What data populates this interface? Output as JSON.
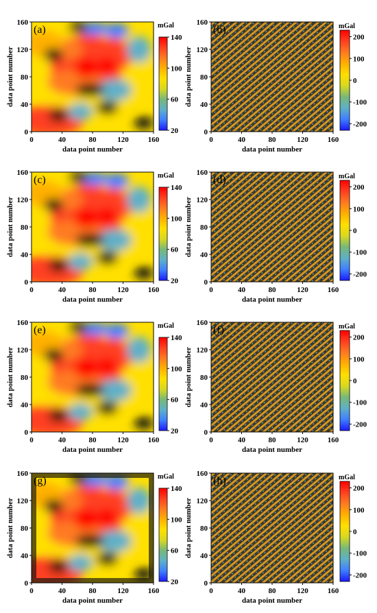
{
  "figure": {
    "x_axis_label": "data point number",
    "y_axis_label": "data point number"
  },
  "colors": {
    "colormap": [
      "#1a1aff",
      "#3f7fff",
      "#5fb0c8",
      "#78b878",
      "#d8d820",
      "#ffe000",
      "#ffb000",
      "#ff7a20",
      "#ff4020",
      "#ff0000"
    ],
    "low_region": "#1a1a10",
    "noise_dark": "#3a3a2a",
    "noise_orange": "#d89620",
    "noise_blue": "#6aa0c0"
  },
  "chart_data": [
    {
      "type": "heatmap",
      "panel_label": "(a)",
      "xlabel": "data point number",
      "ylabel": "data point number",
      "xlim": [
        0,
        160
      ],
      "ylim": [
        0,
        160
      ],
      "xticks": [
        "0",
        "40",
        "80",
        "120",
        "160"
      ],
      "yticks": [
        "0",
        "40",
        "80",
        "120",
        "160"
      ],
      "colorbar": {
        "unit": "mGal",
        "range": [
          20,
          140
        ],
        "ticks": [
          "20",
          "60",
          "100",
          "140"
        ]
      }
    },
    {
      "type": "heatmap",
      "panel_label": "(b)",
      "xlabel": "data point number",
      "ylabel": "data point number",
      "xlim": [
        0,
        160
      ],
      "ylim": [
        0,
        160
      ],
      "xticks": [
        "0",
        "40",
        "80",
        "120",
        "160"
      ],
      "yticks": [
        "0",
        "40",
        "80",
        "120",
        "160"
      ],
      "colorbar": {
        "unit": "mGal",
        "range": [
          -230,
          230
        ],
        "ticks": [
          "-200",
          "-100",
          "0",
          "100",
          "200"
        ]
      }
    },
    {
      "type": "heatmap",
      "panel_label": "(c)",
      "xlabel": "data point number",
      "ylabel": "data point number",
      "xlim": [
        0,
        160
      ],
      "ylim": [
        0,
        160
      ],
      "xticks": [
        "0",
        "40",
        "80",
        "120",
        "160"
      ],
      "yticks": [
        "0",
        "40",
        "80",
        "120",
        "160"
      ],
      "colorbar": {
        "unit": "mGal",
        "range": [
          20,
          140
        ],
        "ticks": [
          "20",
          "60",
          "100",
          "140"
        ]
      }
    },
    {
      "type": "heatmap",
      "panel_label": "(d)",
      "xlabel": "data point number",
      "ylabel": "data point number",
      "xlim": [
        0,
        160
      ],
      "ylim": [
        0,
        160
      ],
      "xticks": [
        "0",
        "40",
        "80",
        "120",
        "160"
      ],
      "yticks": [
        "0",
        "40",
        "80",
        "120",
        "160"
      ],
      "colorbar": {
        "unit": "mGal",
        "range": [
          -230,
          230
        ],
        "ticks": [
          "-200",
          "-100",
          "0",
          "100",
          "200"
        ]
      }
    },
    {
      "type": "heatmap",
      "panel_label": "(e)",
      "xlabel": "data point number",
      "ylabel": "data point number",
      "xlim": [
        0,
        160
      ],
      "ylim": [
        0,
        160
      ],
      "xticks": [
        "0",
        "40",
        "80",
        "120",
        "160"
      ],
      "yticks": [
        "0",
        "40",
        "80",
        "120",
        "160"
      ],
      "colorbar": {
        "unit": "mGal",
        "range": [
          20,
          140
        ],
        "ticks": [
          "20",
          "60",
          "100",
          "140"
        ]
      }
    },
    {
      "type": "heatmap",
      "panel_label": "(f)",
      "xlabel": "data point number",
      "ylabel": "data point number",
      "xlim": [
        0,
        160
      ],
      "ylim": [
        0,
        160
      ],
      "xticks": [
        "0",
        "40",
        "80",
        "120",
        "160"
      ],
      "yticks": [
        "0",
        "40",
        "80",
        "120",
        "160"
      ],
      "colorbar": {
        "unit": "mGal",
        "range": [
          -230,
          230
        ],
        "ticks": [
          "-200",
          "-100",
          "0",
          "100",
          "200"
        ]
      }
    },
    {
      "type": "heatmap",
      "panel_label": "(g)",
      "xlabel": "data point number",
      "ylabel": "data point number",
      "xlim": [
        0,
        160
      ],
      "ylim": [
        0,
        160
      ],
      "xticks": [
        "0",
        "40",
        "80",
        "120",
        "160"
      ],
      "yticks": [
        "0",
        "40",
        "80",
        "120",
        "160"
      ],
      "colorbar": {
        "unit": "mGal",
        "range": [
          20,
          140
        ],
        "ticks": [
          "20",
          "60",
          "100",
          "140"
        ]
      }
    },
    {
      "type": "heatmap",
      "panel_label": "(h)",
      "xlabel": "data point number",
      "ylabel": "data point number",
      "xlim": [
        0,
        160
      ],
      "ylim": [
        0,
        160
      ],
      "xticks": [
        "0",
        "40",
        "80",
        "120",
        "160"
      ],
      "yticks": [
        "0",
        "40",
        "80",
        "120",
        "160"
      ],
      "colorbar": {
        "unit": "mGal",
        "range": [
          -230,
          230
        ],
        "ticks": [
          "-200",
          "-100",
          "0",
          "100",
          "200"
        ]
      }
    }
  ]
}
